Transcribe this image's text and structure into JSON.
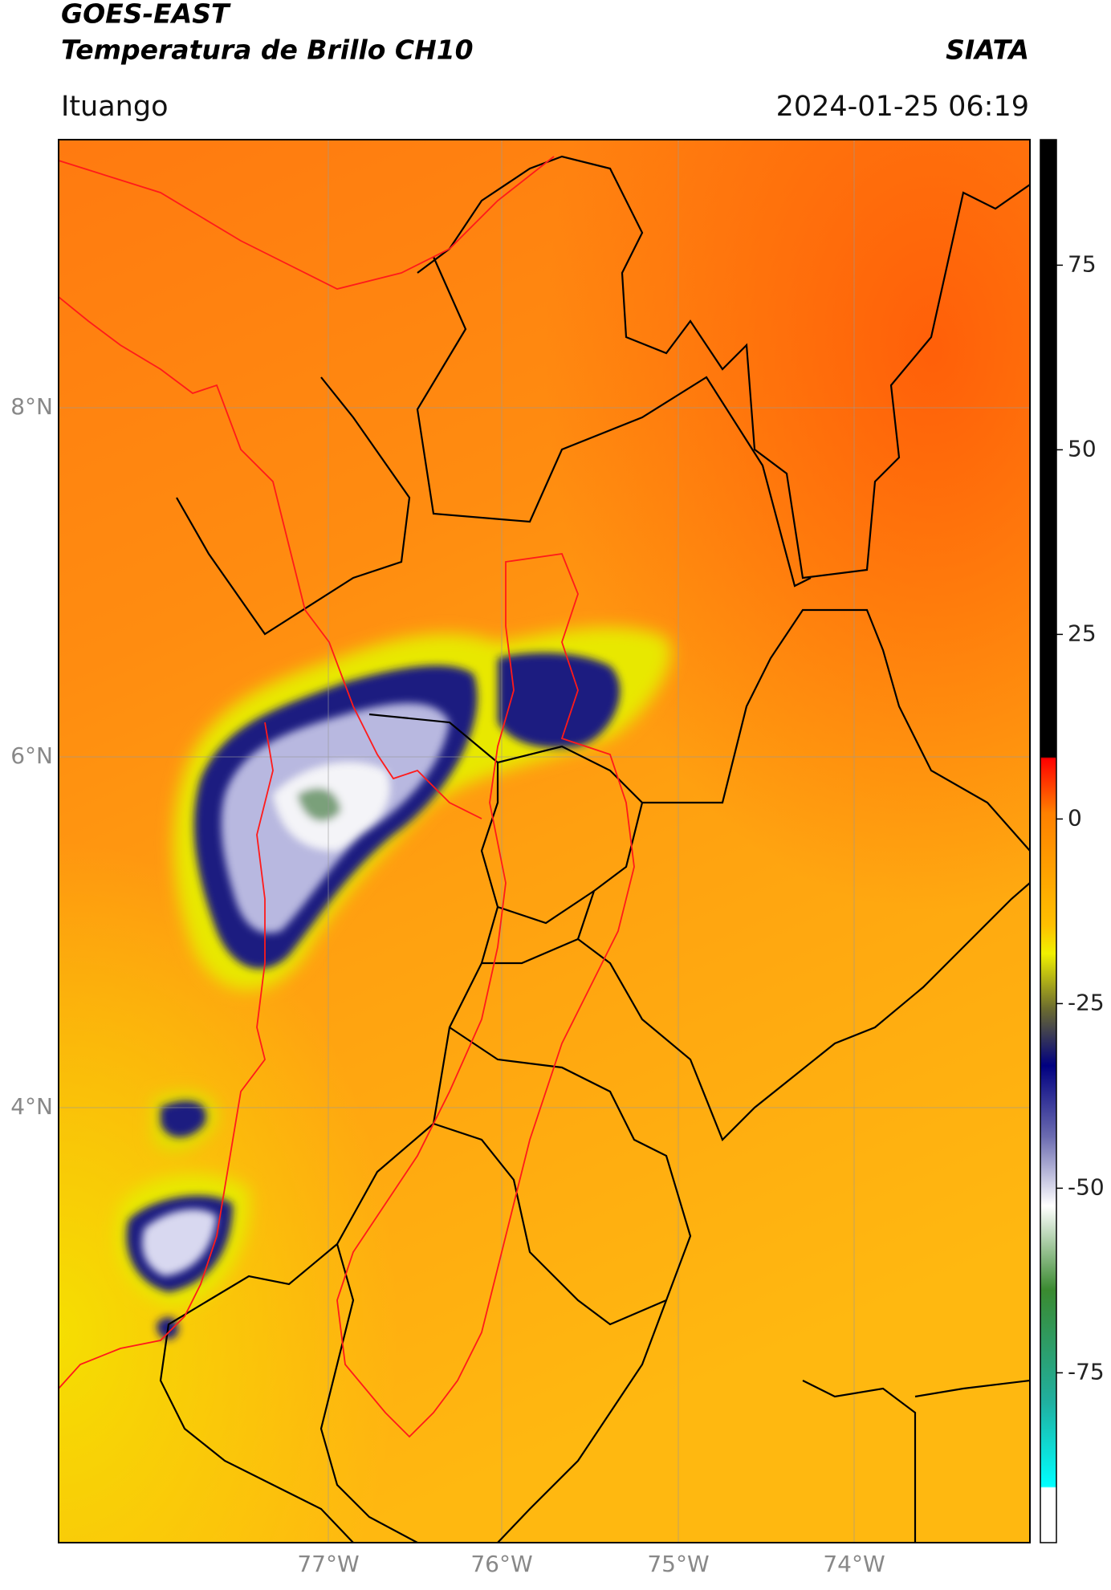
{
  "header": {
    "satellite": "GOES-EAST",
    "product": "Temperatura de Brillo CH10",
    "institution": "SIATA",
    "region": "Ituango",
    "datetime": "2024-01-25 06:19"
  },
  "map": {
    "lat_labels": [
      "8°N",
      "6°N",
      "4°N"
    ],
    "lon_labels": [
      "77°W",
      "76°W",
      "75°W",
      "74°W"
    ]
  },
  "colorbar": {
    "lim": [
      -98,
      92
    ],
    "ticks": [
      75,
      50,
      25,
      0,
      -25,
      -50,
      -75
    ]
  }
}
